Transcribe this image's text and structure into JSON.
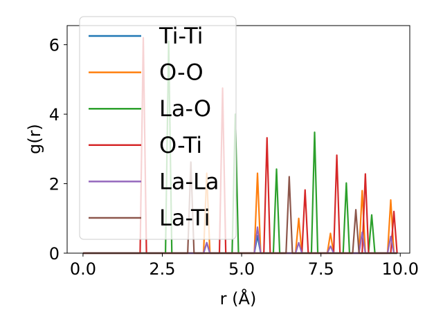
{
  "chart_data": {
    "type": "line",
    "xlabel": "r (Å)",
    "ylabel": "g(r)",
    "xlim": [
      -0.5,
      10.3
    ],
    "ylim": [
      0,
      6.55
    ],
    "xticks": [
      0.0,
      2.5,
      5.0,
      7.5,
      10.0
    ],
    "xtick_labels": [
      "0.0",
      "2.5",
      "5.0",
      "7.5",
      "10.0"
    ],
    "yticks": [
      0,
      2,
      4,
      6
    ],
    "ytick_labels": [
      "0",
      "2",
      "4",
      "6"
    ],
    "grid": false,
    "legend_position": "upper-left",
    "series": [
      {
        "name": "Ti-Ti",
        "color": "#1f77b4",
        "x": [
          0.0,
          3.8,
          3.9,
          4.0,
          5.4,
          5.5,
          5.6,
          9.9
        ],
        "y": [
          0,
          0,
          0.3,
          0,
          0,
          0.5,
          0,
          0
        ]
      },
      {
        "name": "O-O",
        "color": "#ff7f0e",
        "x": [
          0.0,
          3.8,
          3.9,
          4.0,
          5.4,
          5.5,
          5.6,
          6.7,
          6.8,
          6.9,
          7.7,
          7.8,
          7.9,
          8.7,
          8.8,
          8.9,
          9.6,
          9.7,
          9.8,
          9.9
        ],
        "y": [
          0,
          0,
          2.3,
          0,
          0,
          2.3,
          0,
          0,
          1.0,
          0,
          0,
          0.57,
          0,
          0,
          1.8,
          0,
          0,
          1.53,
          0,
          0
        ]
      },
      {
        "name": "La-O",
        "color": "#2ca02c",
        "x": [
          0.0,
          2.6,
          2.7,
          2.8,
          4.7,
          4.8,
          4.9,
          6.0,
          6.1,
          6.2,
          7.2,
          7.3,
          7.4,
          8.2,
          8.3,
          8.4,
          9.0,
          9.1,
          9.2,
          9.9
        ],
        "y": [
          0,
          0,
          6.1,
          0,
          0,
          4.0,
          0,
          0,
          2.42,
          0,
          0,
          3.48,
          0,
          0,
          2.02,
          0,
          0,
          1.1,
          0,
          0
        ]
      },
      {
        "name": "O-Ti",
        "color": "#d62728",
        "x": [
          0.0,
          1.8,
          1.9,
          2.0,
          4.3,
          4.4,
          4.5,
          5.7,
          5.8,
          5.9,
          6.9,
          7.0,
          7.1,
          7.9,
          8.0,
          8.1,
          8.8,
          8.9,
          9.0,
          9.7,
          9.8,
          9.9
        ],
        "y": [
          0,
          0,
          6.2,
          0,
          0,
          4.75,
          0,
          0,
          3.32,
          0,
          0,
          1.82,
          0,
          0,
          2.82,
          0,
          0,
          2.28,
          0,
          0,
          1.2,
          0
        ]
      },
      {
        "name": "La-La",
        "color": "#9467bd",
        "x": [
          0.0,
          3.8,
          3.9,
          4.0,
          5.4,
          5.5,
          5.6,
          6.7,
          6.8,
          6.9,
          7.7,
          7.8,
          7.9,
          8.7,
          8.8,
          8.9,
          9.6,
          9.7,
          9.8,
          9.9
        ],
        "y": [
          0,
          0,
          0.3,
          0,
          0,
          0.75,
          0,
          0,
          0.3,
          0,
          0,
          0.2,
          0,
          0,
          0.6,
          0,
          0,
          0.48,
          0,
          0
        ]
      },
      {
        "name": "La-Ti",
        "color": "#8c564b",
        "x": [
          0.0,
          3.3,
          3.4,
          3.5,
          6.4,
          6.5,
          6.6,
          8.5,
          8.6,
          8.7,
          9.9
        ],
        "y": [
          0,
          0,
          2.62,
          0,
          0,
          2.2,
          0,
          0,
          1.25,
          0,
          0
        ]
      }
    ]
  }
}
